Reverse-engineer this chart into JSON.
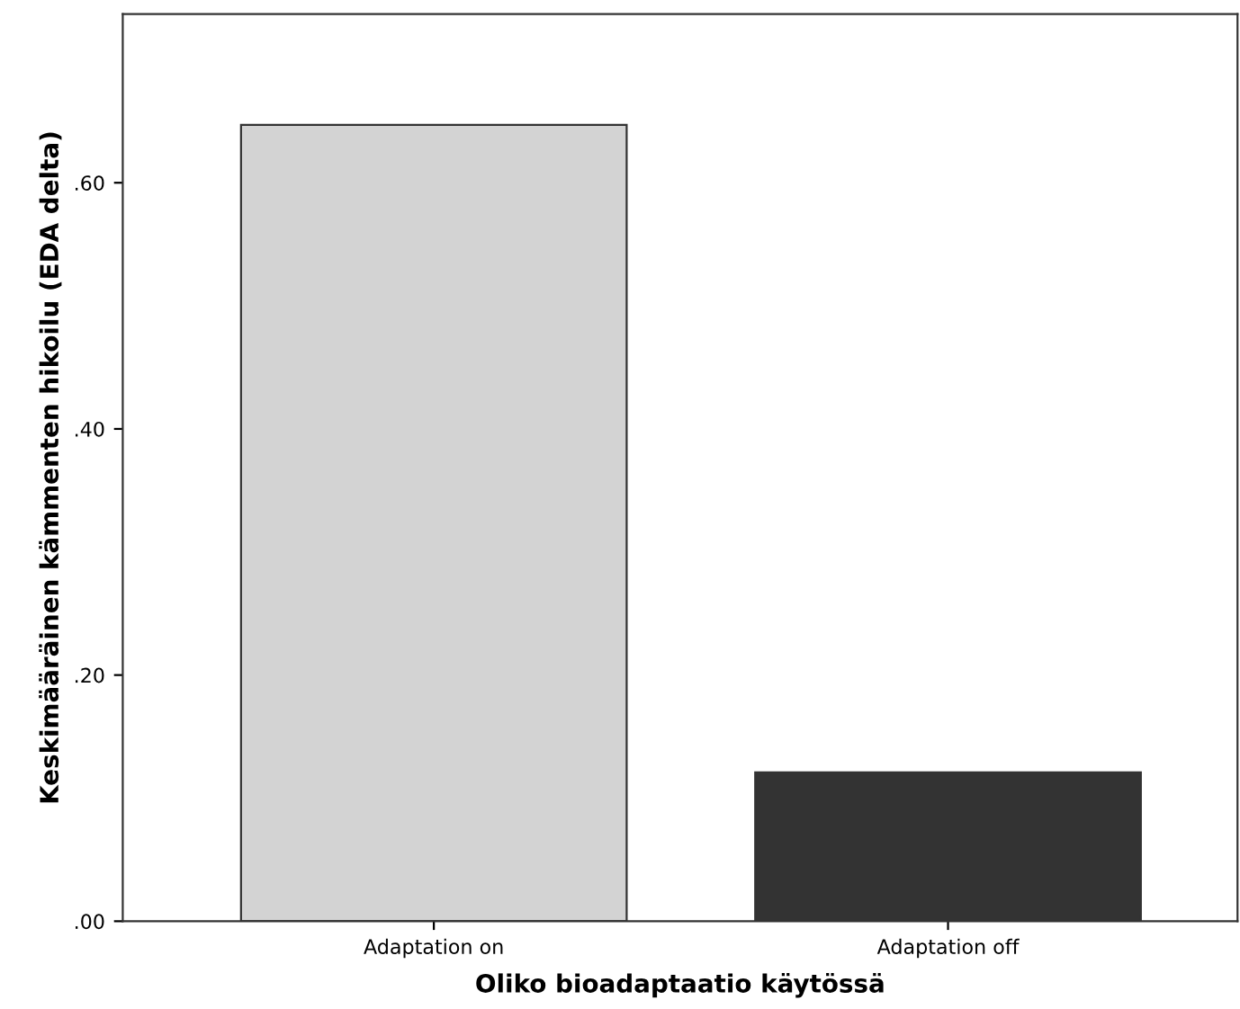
{
  "chart_data": {
    "type": "bar",
    "xlabel": "Oliko bioadaptaatio käytössä",
    "ylabel": "Keskimääräinen kämmenten hikoilu (EDA delta)",
    "categories": [
      "Adaptation on",
      "Adaptation off"
    ],
    "values": [
      0.647,
      0.121
    ],
    "colors": [
      "#d3d3d3",
      "#333333"
    ],
    "ylim": [
      0,
      0.737
    ],
    "yticks": [
      {
        "value": 0,
        "label": ".00"
      },
      {
        "value": 0.2,
        "label": ".20"
      },
      {
        "value": 0.4,
        "label": ".40"
      },
      {
        "value": 0.6,
        "label": ".60"
      }
    ],
    "grid": false,
    "legend": false
  }
}
